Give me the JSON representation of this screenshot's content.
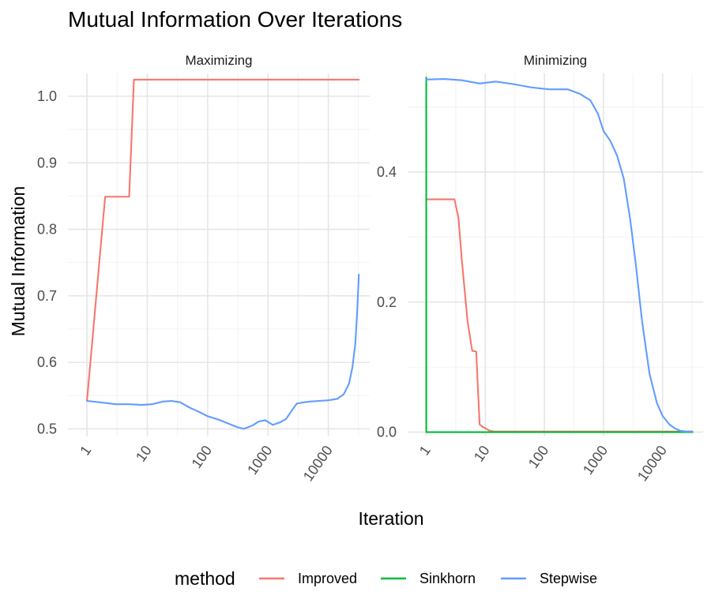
{
  "chart_data": {
    "type": "line",
    "title": "Mutual Information Over Iterations",
    "xlabel": "Iteration",
    "ylabel": "Mutual Information",
    "x_scale": "log10",
    "legend": {
      "title": "method",
      "position": "bottom",
      "entries": [
        {
          "name": "Improved",
          "color": "#F8766D"
        },
        {
          "name": "Sinkhorn",
          "color": "#00BA38"
        },
        {
          "name": "Stepwise",
          "color": "#619CFF"
        }
      ]
    },
    "panels": [
      {
        "name": "Maximizing",
        "xlim": [
          1,
          32000
        ],
        "ylim": [
          0.495,
          1.028
        ],
        "x_ticks": [
          "1",
          "10",
          "100",
          "1000",
          "10000"
        ],
        "y_ticks": [
          "0.5",
          "0.6",
          "0.7",
          "0.8",
          "0.9",
          "1.0"
        ],
        "series": [
          {
            "name": "Improved",
            "color": "#F8766D",
            "x": [
              1,
              2,
              3,
              4,
              5,
              6,
              100,
              1000,
              10000,
              32000
            ],
            "y": [
              0.542,
              0.849,
              0.849,
              0.849,
              0.849,
              1.025,
              1.025,
              1.025,
              1.025,
              1.025
            ]
          },
          {
            "name": "Stepwise",
            "color": "#619CFF",
            "x": [
              1,
              2,
              3,
              5,
              8,
              12,
              18,
              25,
              35,
              50,
              70,
              100,
              150,
              220,
              300,
              400,
              550,
              700,
              900,
              1200,
              1600,
              2000,
              2500,
              3000,
              4000,
              5000,
              7000,
              10000,
              14000,
              18000,
              22000,
              25000,
              28000,
              30000,
              32000
            ],
            "y": [
              0.542,
              0.539,
              0.537,
              0.537,
              0.536,
              0.537,
              0.541,
              0.542,
              0.54,
              0.532,
              0.526,
              0.519,
              0.514,
              0.508,
              0.503,
              0.5,
              0.505,
              0.511,
              0.513,
              0.506,
              0.51,
              0.515,
              0.528,
              0.538,
              0.54,
              0.541,
              0.542,
              0.543,
              0.545,
              0.552,
              0.568,
              0.592,
              0.628,
              0.675,
              0.732
            ]
          }
        ]
      },
      {
        "name": "Minimizing",
        "xlim": [
          1,
          32000
        ],
        "ylim": [
          0,
          0.545
        ],
        "x_ticks": [
          "1",
          "10",
          "100",
          "1000",
          "10000"
        ],
        "y_ticks": [
          "0.0",
          "0.2",
          "0.4"
        ],
        "series": [
          {
            "name": "Improved",
            "color": "#F8766D",
            "x": [
              1,
              2,
              3,
              3.5,
              4,
              5,
              6,
              7,
              8,
              9,
              10,
              12,
              14,
              20,
              100,
              1000,
              10000,
              32000
            ],
            "y": [
              0.358,
              0.358,
              0.358,
              0.33,
              0.265,
              0.17,
              0.125,
              0.124,
              0.012,
              0.008,
              0.006,
              0.002,
              0.001,
              0.001,
              0.001,
              0.001,
              0.001,
              0.001
            ]
          },
          {
            "name": "Sinkhorn",
            "color": "#00BA38",
            "x": [
              1,
              1.001,
              10,
              100,
              1000,
              10000,
              32000
            ],
            "y": [
              0.545,
              0.0,
              0.0,
              0.0,
              0.0,
              0.0,
              0.0
            ]
          },
          {
            "name": "Stepwise",
            "color": "#619CFF",
            "x": [
              1,
              2,
              4,
              8,
              15,
              30,
              60,
              120,
              250,
              400,
              600,
              800,
              1000,
              1300,
              1700,
              2200,
              2800,
              3500,
              4500,
              6000,
              8000,
              10000,
              13000,
              16000,
              20000,
              25000,
              32000
            ],
            "y": [
              0.542,
              0.543,
              0.541,
              0.536,
              0.539,
              0.535,
              0.53,
              0.527,
              0.527,
              0.52,
              0.51,
              0.49,
              0.463,
              0.448,
              0.425,
              0.39,
              0.33,
              0.26,
              0.17,
              0.09,
              0.045,
              0.025,
              0.012,
              0.006,
              0.002,
              0.001,
              0.001
            ]
          }
        ]
      }
    ]
  }
}
